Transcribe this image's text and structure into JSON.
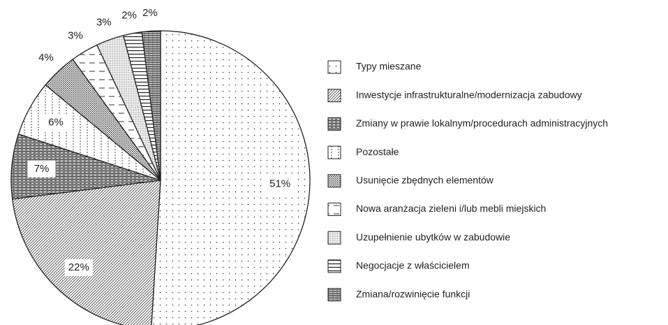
{
  "chart_data": {
    "type": "pie",
    "categories": [
      "Typy mieszane",
      "Inwestycje infrastrukturalne/modernizacja zabudowy",
      "Zmiany w prawie lokalnym/procedurach administracyjnych",
      "Pozostałe",
      "Usunięcie zbędnych elementów",
      "Nowa aranżacja zieleni i/lub mebli miejskich",
      "Uzupełnienie ubytków w zabudowie",
      "Negocjacje z właścicielem",
      "Zmiana/rozwinięcie funkcji"
    ],
    "values": [
      51,
      22,
      7,
      6,
      4,
      3,
      3,
      2,
      2
    ],
    "value_labels": [
      "51%",
      "22%",
      "7%",
      "6%",
      "4%",
      "3%",
      "3%",
      "2%",
      "2%"
    ],
    "patterns": [
      "sparse-dots",
      "diagonal",
      "bricks",
      "dotted-columns",
      "checker",
      "dashes",
      "fine-dots",
      "h-lines",
      "dense-lines"
    ],
    "start_angle": 0,
    "direction": "clockwise",
    "legend": "right"
  }
}
